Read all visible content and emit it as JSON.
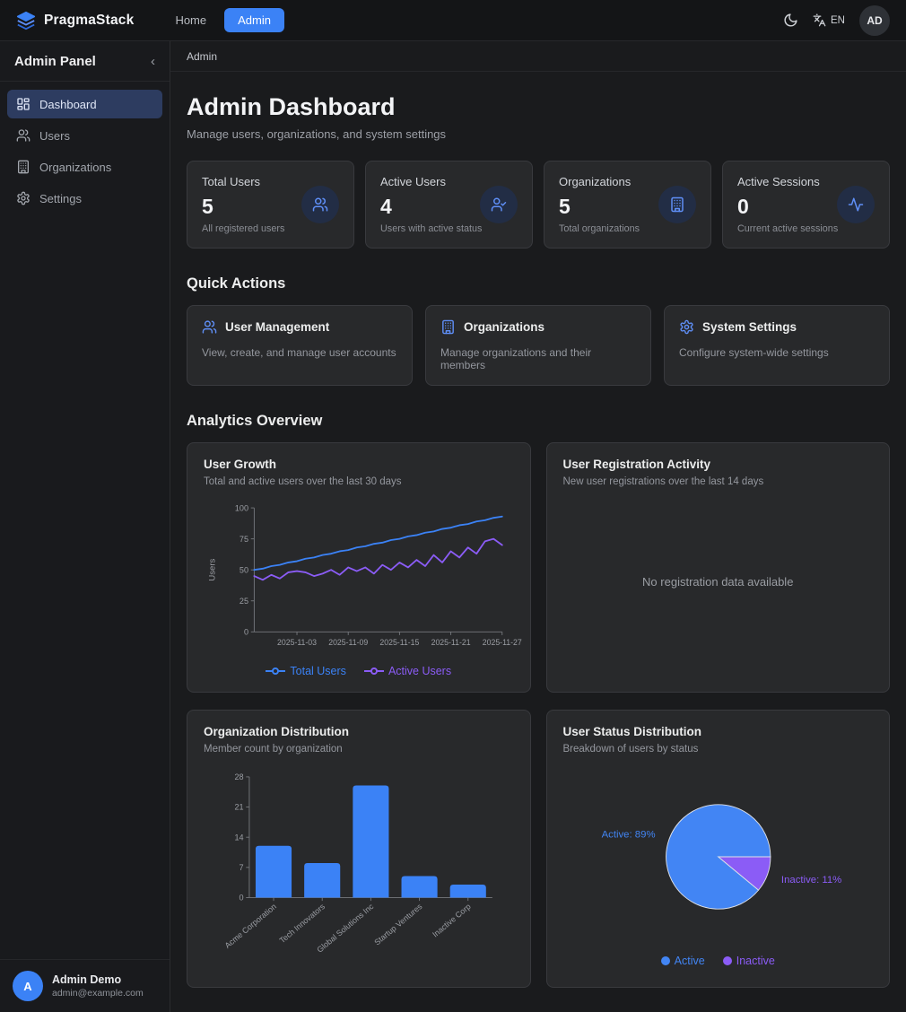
{
  "theme": {
    "accent": "#3b82f6",
    "purple": "#8b5cf6",
    "card_bg": "#28292b"
  },
  "navbar": {
    "brand": "PragmaStack",
    "nav": [
      {
        "label": "Home",
        "active": false
      },
      {
        "label": "Admin",
        "active": true
      }
    ],
    "language": "EN",
    "avatar_initials": "AD",
    "icons": [
      "layers-icon",
      "moon-icon",
      "translate-icon"
    ]
  },
  "sidebar": {
    "title": "Admin Panel",
    "collapse": "‹",
    "items": [
      {
        "label": "Dashboard",
        "icon": "dashboard-icon",
        "active": true
      },
      {
        "label": "Users",
        "icon": "users-icon",
        "active": false
      },
      {
        "label": "Organizations",
        "icon": "building-icon",
        "active": false
      },
      {
        "label": "Settings",
        "icon": "gear-icon",
        "active": false
      }
    ],
    "user": {
      "initial": "A",
      "name": "Admin Demo",
      "email": "admin@example.com"
    }
  },
  "breadcrumb": "Admin",
  "page": {
    "title": "Admin Dashboard",
    "subtitle": "Manage users, organizations, and system settings"
  },
  "stats": [
    {
      "label": "Total Users",
      "value": "5",
      "description": "All registered users",
      "icon": "users-icon"
    },
    {
      "label": "Active Users",
      "value": "4",
      "description": "Users with active status",
      "icon": "user-check-icon"
    },
    {
      "label": "Organizations",
      "value": "5",
      "description": "Total organizations",
      "icon": "building-icon"
    },
    {
      "label": "Active Sessions",
      "value": "0",
      "description": "Current active sessions",
      "icon": "activity-icon"
    }
  ],
  "quick_actions": {
    "heading": "Quick Actions",
    "cards": [
      {
        "title": "User Management",
        "description": "View, create, and manage user accounts",
        "icon": "users-icon"
      },
      {
        "title": "Organizations",
        "description": "Manage organizations and their members",
        "icon": "building-icon"
      },
      {
        "title": "System Settings",
        "description": "Configure system-wide settings",
        "icon": "gear-icon"
      }
    ]
  },
  "analytics": {
    "heading": "Analytics Overview"
  },
  "chart_data": [
    {
      "id": "user_growth",
      "type": "line",
      "title": "User Growth",
      "subtitle": "Total and active users over the last 30 days",
      "ylabel": "Users",
      "ylim": [
        0,
        100
      ],
      "yticks": [
        0,
        25,
        50,
        75,
        100
      ],
      "n_points": 30,
      "x_tick_labels": [
        "2025-11-03",
        "2025-11-09",
        "2025-11-15",
        "2025-11-21",
        "2025-11-27"
      ],
      "x_tick_indices": [
        5,
        11,
        17,
        23,
        29
      ],
      "grid": false,
      "legend_position": "bottom",
      "series": [
        {
          "name": "Total Users",
          "color": "#3b82f6",
          "values": [
            50,
            51,
            53,
            54,
            56,
            57,
            59,
            60,
            62,
            63,
            65,
            66,
            68,
            69,
            71,
            72,
            74,
            75,
            77,
            78,
            80,
            81,
            83,
            84,
            86,
            87,
            89,
            90,
            92,
            93
          ]
        },
        {
          "name": "Active Users",
          "color": "#8b5cf6",
          "values": [
            45,
            42,
            46,
            43,
            48,
            49,
            48,
            45,
            47,
            50,
            46,
            52,
            49,
            52,
            47,
            54,
            50,
            56,
            52,
            58,
            53,
            62,
            56,
            65,
            60,
            68,
            63,
            73,
            75,
            70
          ]
        }
      ]
    },
    {
      "id": "user_registration",
      "type": "line",
      "title": "User Registration Activity",
      "subtitle": "New user registrations over the last 14 days",
      "empty": true,
      "empty_message": "No registration data available"
    },
    {
      "id": "org_distribution",
      "type": "bar",
      "title": "Organization Distribution",
      "subtitle": "Member count by organization",
      "categories": [
        "Acme Corporation",
        "Tech Innovators",
        "Global Solutions Inc",
        "Startup Ventures",
        "Inactive Corp"
      ],
      "values": [
        12,
        8,
        26,
        5,
        3
      ],
      "ylim": [
        0,
        28
      ],
      "yticks": [
        0,
        7,
        14,
        21,
        28
      ],
      "bar_color": "#3b82f6",
      "grid": false
    },
    {
      "id": "user_status",
      "type": "pie",
      "title": "User Status Distribution",
      "subtitle": "Breakdown of users by status",
      "slices": [
        {
          "label": "Active",
          "pct": 89,
          "color": "#4285f4"
        },
        {
          "label": "Inactive",
          "pct": 11,
          "color": "#8b5cf6"
        }
      ],
      "slice_labels": [
        "Active: 89%",
        "Inactive: 11%"
      ],
      "legend": [
        "Active",
        "Inactive"
      ],
      "legend_position": "bottom"
    }
  ]
}
